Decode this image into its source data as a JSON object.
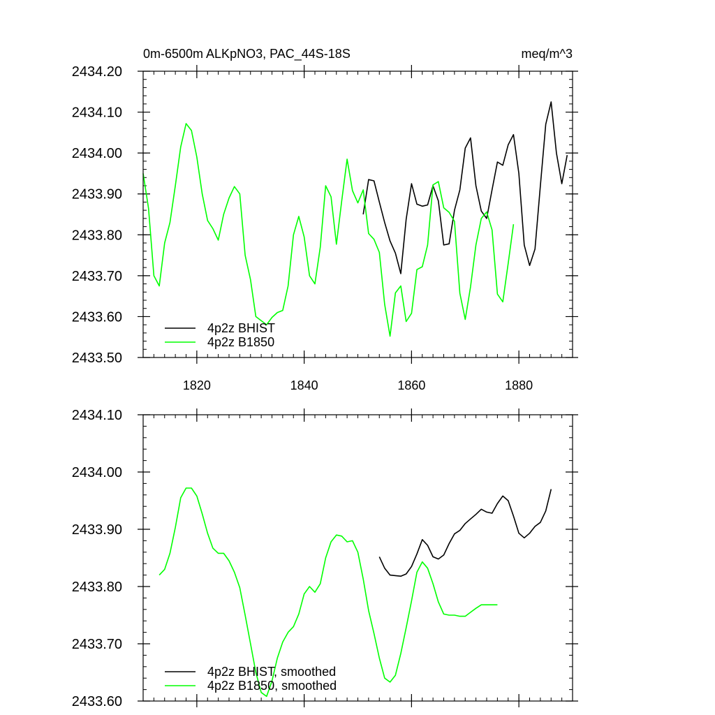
{
  "chart_data": [
    {
      "type": "line",
      "title_left": "0m-6500m ALKpNO3, PAC_44S-18S",
      "title_right": "meq/m^3",
      "xlabel": "",
      "ylabel": "",
      "xlim": [
        1810,
        1890
      ],
      "ylim": [
        2433.5,
        2434.2
      ],
      "xticks": [
        1820,
        1840,
        1860,
        1880
      ],
      "xtick_labels": [
        "1820",
        "1840",
        "1860",
        "1880"
      ],
      "yticks": [
        2433.5,
        2433.6,
        2433.7,
        2433.8,
        2433.9,
        2434.0,
        2434.1,
        2434.2
      ],
      "ytick_labels": [
        "2433.50",
        "2433.60",
        "2433.70",
        "2433.80",
        "2433.90",
        "2434.00",
        "2434.10",
        "2434.20"
      ],
      "legend_position": "bottom-left",
      "series": [
        {
          "name": "4p2z BHIST",
          "color": "#000000",
          "x": [
            1851,
            1852,
            1853,
            1854,
            1855,
            1856,
            1857,
            1858,
            1859,
            1860,
            1861,
            1862,
            1863,
            1864,
            1865,
            1866,
            1867,
            1868,
            1869,
            1870,
            1871,
            1872,
            1873,
            1874,
            1875,
            1876,
            1877,
            1878,
            1879,
            1880,
            1881,
            1882,
            1883,
            1884,
            1885,
            1886,
            1887,
            1888,
            1889
          ],
          "y": [
            2433.85,
            2433.935,
            2433.932,
            2433.88,
            2433.83,
            2433.785,
            2433.755,
            2433.705,
            2433.838,
            2433.925,
            2433.875,
            2433.87,
            2433.873,
            2433.92,
            2433.883,
            2433.775,
            2433.778,
            2433.86,
            2433.91,
            2434.012,
            2434.037,
            2433.92,
            2433.858,
            2433.84,
            2433.91,
            2433.978,
            2433.97,
            2434.02,
            2434.045,
            2433.95,
            2433.775,
            2433.725,
            2433.765,
            2433.92,
            2434.07,
            2434.125,
            2434.0,
            2433.925,
            2433.995
          ]
        },
        {
          "name": "4p2z B1850",
          "color": "#00ff00",
          "x": [
            1810,
            1811,
            1812,
            1813,
            1814,
            1815,
            1816,
            1817,
            1818,
            1819,
            1820,
            1821,
            1822,
            1823,
            1824,
            1825,
            1826,
            1827,
            1828,
            1829,
            1830,
            1831,
            1832,
            1833,
            1834,
            1835,
            1836,
            1837,
            1838,
            1839,
            1840,
            1841,
            1842,
            1843,
            1844,
            1845,
            1846,
            1847,
            1848,
            1849,
            1850,
            1851,
            1852,
            1853,
            1854,
            1855,
            1856,
            1857,
            1858,
            1859,
            1860,
            1861,
            1862,
            1863,
            1864,
            1865,
            1866,
            1867,
            1868,
            1869,
            1870,
            1871,
            1872,
            1873,
            1874,
            1875,
            1876,
            1877,
            1878,
            1879
          ],
          "y": [
            2433.95,
            2433.865,
            2433.7,
            2433.675,
            2433.78,
            2433.83,
            2433.92,
            2434.015,
            2434.072,
            2434.055,
            2433.99,
            2433.9,
            2433.835,
            2433.815,
            2433.787,
            2433.85,
            2433.89,
            2433.918,
            2433.9,
            2433.75,
            2433.69,
            2433.6,
            2433.59,
            2433.58,
            2433.598,
            2433.61,
            2433.615,
            2433.675,
            2433.8,
            2433.845,
            2433.795,
            2433.7,
            2433.68,
            2433.77,
            2433.92,
            2433.893,
            2433.777,
            2433.883,
            2433.985,
            2433.908,
            2433.878,
            2433.91,
            2433.803,
            2433.789,
            2433.757,
            2433.63,
            2433.552,
            2433.658,
            2433.675,
            2433.588,
            2433.608,
            2433.715,
            2433.722,
            2433.775,
            2433.922,
            2433.93,
            2433.866,
            2433.855,
            2433.833,
            2433.657,
            2433.593,
            2433.673,
            2433.775,
            2433.84,
            2433.856,
            2433.812,
            2433.655,
            2433.636,
            2433.73,
            2433.826
          ]
        }
      ]
    },
    {
      "type": "line",
      "title_left": "",
      "title_right": "",
      "xlabel": "",
      "ylabel": "",
      "xlim": [
        1810,
        1890
      ],
      "ylim": [
        2433.6,
        2434.1
      ],
      "xticks": [
        1820,
        1840,
        1860,
        1880
      ],
      "xtick_labels": [],
      "yticks": [
        2433.6,
        2433.7,
        2433.8,
        2433.9,
        2434.0,
        2434.1
      ],
      "ytick_labels": [
        "2433.60",
        "2433.70",
        "2433.80",
        "2433.90",
        "2434.00",
        "2434.10"
      ],
      "legend_position": "bottom-left",
      "series": [
        {
          "name": "4p2z BHIST, smoothed",
          "color": "#000000",
          "x": [
            1854,
            1855,
            1856,
            1857,
            1858,
            1859,
            1860,
            1861,
            1862,
            1863,
            1864,
            1865,
            1866,
            1867,
            1868,
            1869,
            1870,
            1871,
            1872,
            1873,
            1874,
            1875,
            1876,
            1877,
            1878,
            1879,
            1880,
            1881,
            1882,
            1883,
            1884,
            1885,
            1886
          ],
          "y": [
            2433.852,
            2433.832,
            2433.82,
            2433.819,
            2433.818,
            2433.822,
            2433.835,
            2433.857,
            2433.882,
            2433.872,
            2433.852,
            2433.848,
            2433.855,
            2433.875,
            2433.892,
            2433.898,
            2433.91,
            2433.918,
            2433.926,
            2433.935,
            2433.93,
            2433.928,
            2433.945,
            2433.958,
            2433.95,
            2433.923,
            2433.893,
            2433.885,
            2433.893,
            2433.905,
            2433.912,
            2433.932,
            2433.97
          ]
        },
        {
          "name": "4p2z B1850, smoothed",
          "color": "#00ff00",
          "x": [
            1813,
            1814,
            1815,
            1816,
            1817,
            1818,
            1819,
            1820,
            1821,
            1822,
            1823,
            1824,
            1825,
            1826,
            1827,
            1828,
            1829,
            1830,
            1831,
            1832,
            1833,
            1834,
            1835,
            1836,
            1837,
            1838,
            1839,
            1840,
            1841,
            1842,
            1843,
            1844,
            1845,
            1846,
            1847,
            1848,
            1849,
            1850,
            1851,
            1852,
            1853,
            1854,
            1855,
            1856,
            1857,
            1858,
            1859,
            1860,
            1861,
            1862,
            1863,
            1864,
            1865,
            1866,
            1867,
            1868,
            1869,
            1870,
            1871,
            1872,
            1873,
            1874,
            1875,
            1876
          ],
          "y": [
            2433.82,
            2433.83,
            2433.858,
            2433.903,
            2433.955,
            2433.972,
            2433.972,
            2433.958,
            2433.927,
            2433.893,
            2433.867,
            2433.858,
            2433.858,
            2433.845,
            2433.825,
            2433.798,
            2433.75,
            2433.7,
            2433.65,
            2433.615,
            2433.608,
            2433.635,
            2433.675,
            2433.703,
            2433.72,
            2433.73,
            2433.752,
            2433.787,
            2433.8,
            2433.79,
            2433.805,
            2433.85,
            2433.878,
            2433.89,
            2433.888,
            2433.878,
            2433.88,
            2433.86,
            2433.813,
            2433.758,
            2433.718,
            2433.675,
            2433.64,
            2433.633,
            2433.645,
            2433.683,
            2433.728,
            2433.775,
            2433.825,
            2433.843,
            2433.832,
            2433.805,
            2433.773,
            2433.752,
            2433.75,
            2433.75,
            2433.748,
            2433.748,
            2433.755,
            2433.762,
            2433.768,
            2433.768,
            2433.768,
            2433.768
          ]
        }
      ]
    }
  ]
}
